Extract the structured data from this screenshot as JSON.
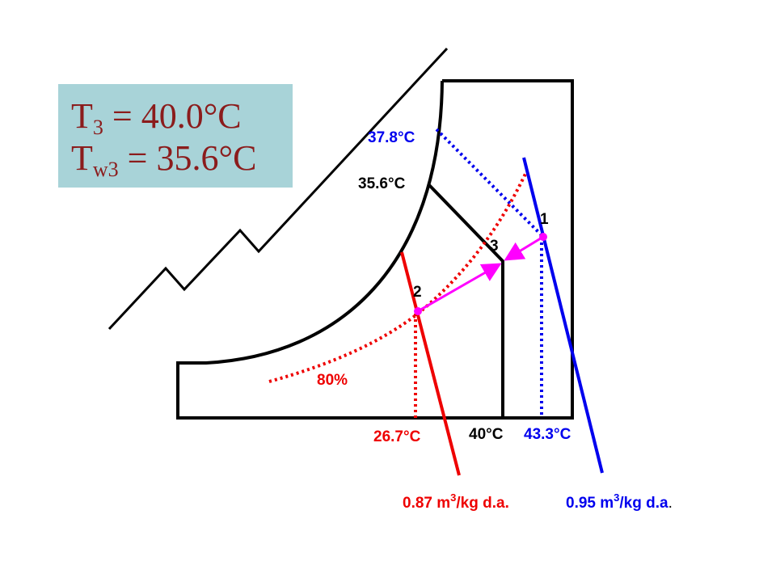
{
  "info_box": {
    "line1": {
      "symbol": "T",
      "subscript": "3",
      "text": " = 40.0°C"
    },
    "line2": {
      "symbol": "T",
      "subscript": "w3",
      "text": " = 35.6°C"
    }
  },
  "labels": {
    "wet_bulb_1": "37.8°C",
    "wet_bulb_3": "35.6°C",
    "state_1": "1",
    "state_3": "3",
    "state_2": "2",
    "humidity_2": "80%",
    "dry_bulb_2": "26.7°C",
    "dry_bulb_3": "40°C",
    "dry_bulb_1": "43.3°C"
  },
  "volumes": {
    "v2": {
      "text": "0.87 m",
      "superscript": "3",
      "unit": "/kg d.a."
    },
    "v1": {
      "text": "0.95 m",
      "superscript": "3",
      "unit": "/kg d.a",
      "end": "."
    }
  }
}
